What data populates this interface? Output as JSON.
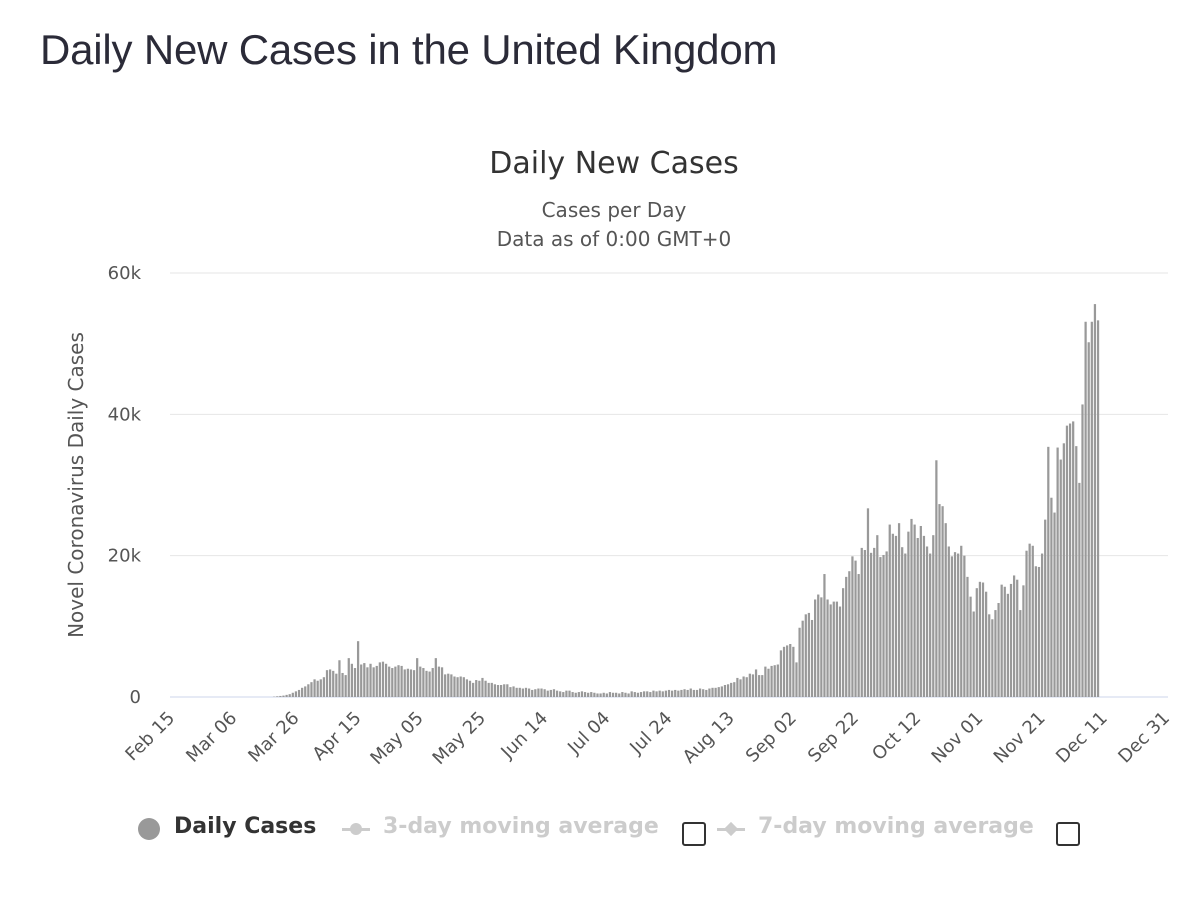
{
  "page": {
    "title": "Daily New Cases in the United Kingdom"
  },
  "chart_data": {
    "type": "bar",
    "title": "Daily New Cases",
    "subtitle": "Cases per Day",
    "subtitle2": "Data as of 0:00 GMT+0",
    "xlabel": "",
    "ylabel": "Novel Coronavirus Daily Cases",
    "ylim": [
      0,
      60000
    ],
    "y_ticks": [
      0,
      20000,
      40000,
      60000
    ],
    "y_tick_labels": [
      "0",
      "20k",
      "40k",
      "60k"
    ],
    "x_start": "2020-02-15",
    "x_end": "2020-12-31",
    "x_tick_labels": [
      "Feb 15",
      "Mar 06",
      "Mar 26",
      "Apr 15",
      "May 05",
      "May 25",
      "Jun 14",
      "Jul 04",
      "Jul 24",
      "Aug 13",
      "Sep 02",
      "Sep 22",
      "Oct 12",
      "Nov 01",
      "Nov 21",
      "Dec 11",
      "Dec 31"
    ],
    "grid": true,
    "bar_color": "#999999",
    "series": [
      {
        "name": "Daily Cases",
        "values": [
          0,
          0,
          0,
          0,
          0,
          0,
          0,
          0,
          0,
          0,
          0,
          0,
          0,
          0,
          0,
          0,
          0,
          0,
          0,
          0,
          0,
          0,
          0,
          0,
          0,
          0,
          0,
          0,
          0,
          0,
          0,
          0,
          0,
          50,
          100,
          150,
          200,
          300,
          400,
          600,
          800,
          1000,
          1300,
          1500,
          1800,
          2100,
          2500,
          2300,
          2500,
          2800,
          3800,
          3900,
          3700,
          3300,
          5200,
          3400,
          3100,
          5500,
          4700,
          4100,
          7900,
          4600,
          4800,
          4200,
          4700,
          4200,
          4400,
          4900,
          5000,
          4700,
          4300,
          4100,
          4300,
          4500,
          4400,
          3900,
          4000,
          3900,
          3800,
          5500,
          4300,
          4100,
          3700,
          3600,
          4100,
          5500,
          4300,
          4200,
          3200,
          3300,
          3200,
          2900,
          2800,
          2900,
          2800,
          2500,
          2300,
          2000,
          2400,
          2300,
          2700,
          2300,
          2000,
          2000,
          1800,
          1700,
          1700,
          1800,
          1800,
          1400,
          1500,
          1300,
          1300,
          1200,
          1300,
          1200,
          1000,
          1100,
          1200,
          1200,
          1100,
          900,
          1000,
          1100,
          900,
          800,
          700,
          900,
          900,
          700,
          600,
          700,
          800,
          700,
          600,
          700,
          600,
          500,
          500,
          600,
          500,
          700,
          600,
          600,
          500,
          700,
          600,
          500,
          800,
          700,
          600,
          700,
          800,
          800,
          700,
          900,
          800,
          900,
          800,
          900,
          1000,
          900,
          1000,
          900,
          1000,
          1100,
          1000,
          1200,
          1000,
          1000,
          1200,
          1100,
          1000,
          1200,
          1300,
          1300,
          1400,
          1500,
          1700,
          1800,
          2000,
          2100,
          2700,
          2500,
          2900,
          2800,
          3300,
          3200,
          3900,
          3100,
          3100,
          4300,
          4000,
          4400,
          4500,
          4600,
          6600,
          7100,
          7300,
          7500,
          7100,
          4900,
          9800,
          10800,
          11700,
          11900,
          10900,
          13800,
          14500,
          14100,
          17400,
          13800,
          13100,
          13500,
          13500,
          12800,
          15400,
          17000,
          17800,
          19900,
          19300,
          17400,
          21100,
          20800,
          26700,
          20400,
          21100,
          22900,
          19800,
          20100,
          20600,
          24400,
          23100,
          22800,
          24600,
          21200,
          20300,
          23400,
          25200,
          24400,
          22500,
          24200,
          22800,
          21300,
          20300,
          22900,
          33500,
          27300,
          27000,
          24600,
          21300,
          19900,
          20500,
          20300,
          21400,
          20000,
          17000,
          14200,
          12100,
          15400,
          16300,
          16200,
          14900,
          11700,
          11000,
          12300,
          13300,
          15900,
          15600,
          14600,
          16000,
          17200,
          16600,
          12300,
          15800,
          20700,
          21700,
          21400,
          18500,
          18400,
          20300,
          25100,
          35400,
          28200,
          26100,
          35300,
          33600,
          35900,
          38400,
          38700,
          39000,
          35500,
          30300,
          41400,
          53100,
          50200,
          53100,
          55600,
          53300
        ]
      }
    ]
  },
  "legend": {
    "items": [
      {
        "label": "Daily Cases",
        "icon": "filled-circle-icon",
        "active": true,
        "color": "#999999"
      },
      {
        "label": "3-day moving average",
        "icon": "line-circle-icon",
        "active": false,
        "color": "#cccccc"
      },
      {
        "label": "7-day moving average",
        "icon": "line-diamond-icon",
        "active": false,
        "color": "#cccccc"
      }
    ]
  }
}
